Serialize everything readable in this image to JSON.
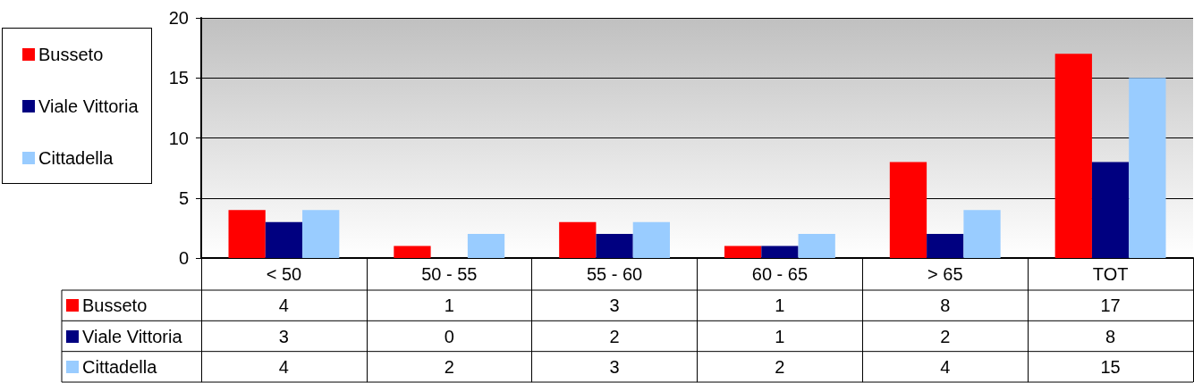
{
  "chart_data": {
    "type": "bar",
    "categories": [
      "< 50",
      "50 - 55",
      "55 - 60",
      "60 - 65",
      "> 65",
      "TOT"
    ],
    "series": [
      {
        "name": "Busseto",
        "color": "#ff0000",
        "values": [
          4,
          1,
          3,
          1,
          8,
          17
        ]
      },
      {
        "name": "Viale Vittoria",
        "color": "#000080",
        "values": [
          3,
          0,
          2,
          1,
          2,
          8
        ]
      },
      {
        "name": "Cittadella",
        "color": "#99ccff",
        "values": [
          4,
          2,
          3,
          2,
          4,
          15
        ]
      }
    ],
    "ylim": [
      0,
      20
    ],
    "yticks": [
      0,
      5,
      10,
      15,
      20
    ],
    "grid": "y",
    "legend": "left",
    "data_labels": true
  }
}
